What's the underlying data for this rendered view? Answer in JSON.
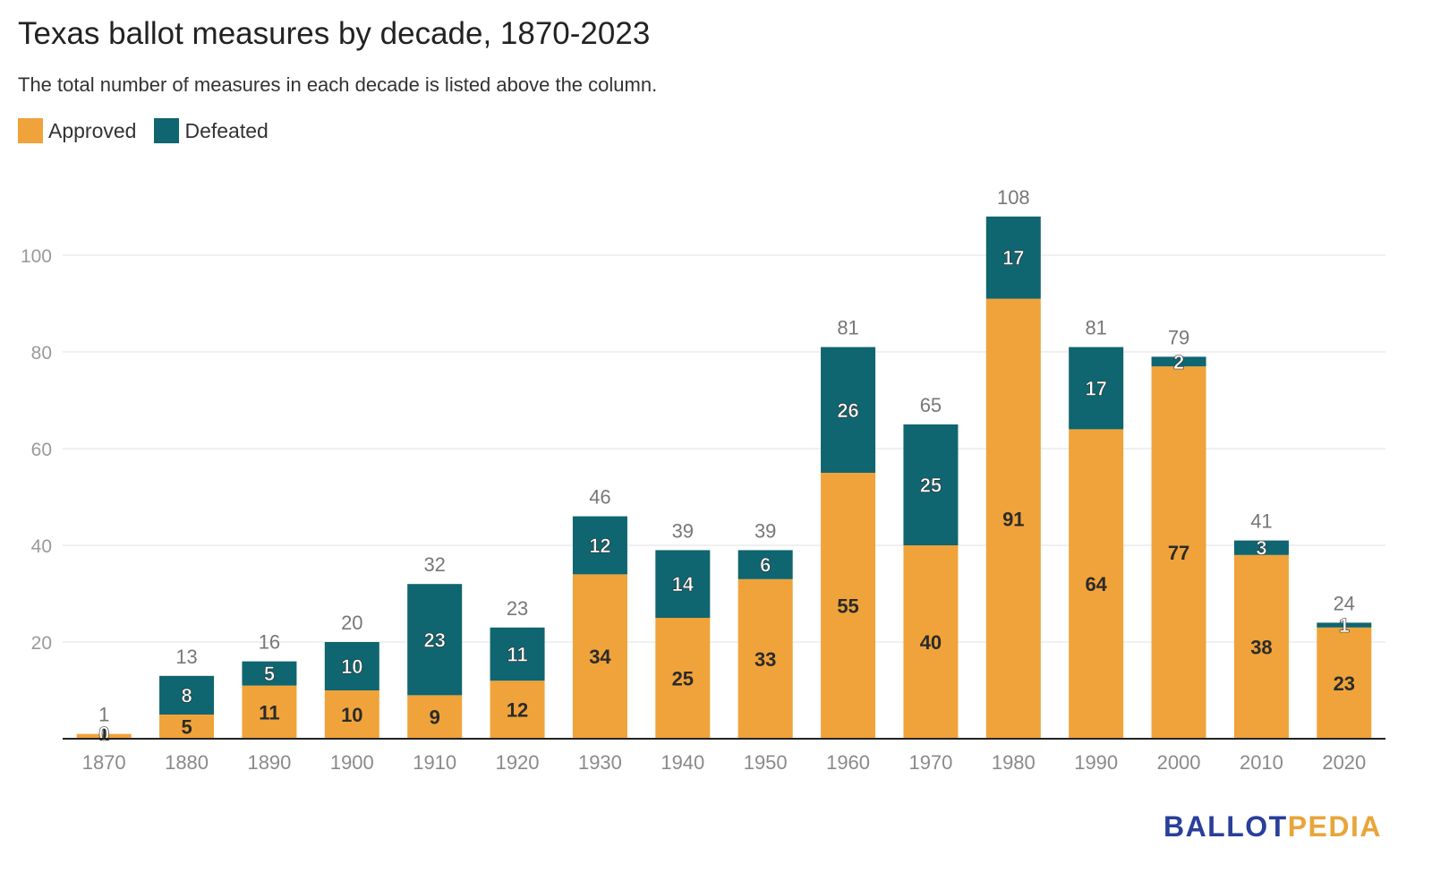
{
  "title": "Texas ballot measures by decade, 1870-2023",
  "subtitle": "The total number of measures in each decade is listed above the column.",
  "brand": {
    "part1": "BALLOT",
    "part2": "PEDIA",
    "color1": "#2a3f9a",
    "color2": "#e8a53a"
  },
  "colors": {
    "approved": "#f0a33a",
    "defeated": "#0f6570"
  },
  "chart_data": {
    "type": "bar",
    "stacked": true,
    "title": "Texas ballot measures by decade, 1870-2023",
    "subtitle": "The total number of measures in each decade is listed above the column.",
    "categories": [
      "1870",
      "1880",
      "1890",
      "1900",
      "1910",
      "1920",
      "1930",
      "1940",
      "1950",
      "1960",
      "1970",
      "1980",
      "1990",
      "2000",
      "2010",
      "2020"
    ],
    "series": [
      {
        "name": "Approved",
        "color": "#f0a33a",
        "values": [
          1,
          5,
          11,
          10,
          9,
          12,
          34,
          25,
          33,
          55,
          40,
          91,
          64,
          77,
          38,
          23
        ]
      },
      {
        "name": "Defeated",
        "color": "#0f6570",
        "values": [
          0,
          8,
          5,
          10,
          23,
          11,
          12,
          14,
          6,
          26,
          25,
          17,
          17,
          2,
          3,
          1
        ]
      }
    ],
    "totals": [
      1,
      13,
      16,
      20,
      32,
      23,
      46,
      39,
      39,
      81,
      65,
      108,
      81,
      79,
      41,
      24
    ],
    "yticks": [
      20,
      40,
      60,
      80,
      100
    ],
    "ylim": [
      0,
      115
    ],
    "grid": true,
    "legend": "top-left"
  }
}
